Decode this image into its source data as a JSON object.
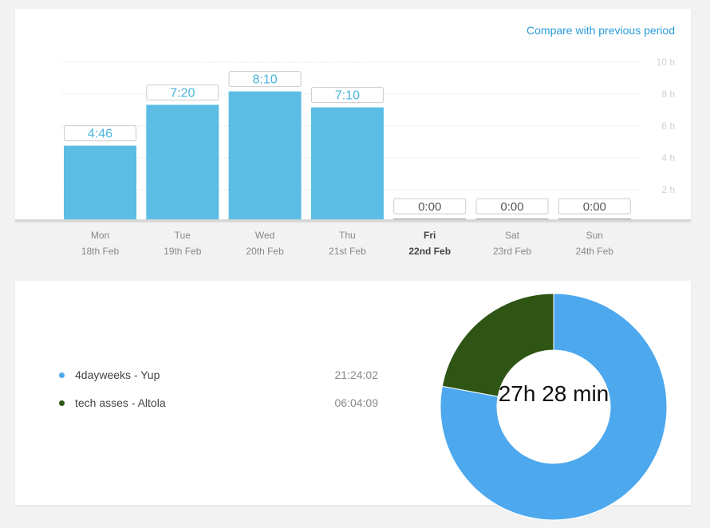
{
  "compare_link": "Compare with previous period",
  "colors": {
    "bar_active": "#5bbde4",
    "bar_empty": "#999999",
    "gridline": "#e6e6e6",
    "label_text": "#4ab3dc",
    "tick_text": "#cfcfcf",
    "day_text": "#888888",
    "day_text_current": "#444444"
  },
  "chart_data": [
    {
      "type": "bar",
      "categories": [
        "Mon",
        "Tue",
        "Wed",
        "Thu",
        "Fri",
        "Sat",
        "Sun"
      ],
      "dates": [
        "18th Feb",
        "19th Feb",
        "20th Feb",
        "21st Feb",
        "22nd Feb",
        "23rd Feb",
        "24th Feb"
      ],
      "current_day": "Fri",
      "values": [
        4.77,
        7.33,
        8.17,
        7.17,
        0,
        0,
        0
      ],
      "data_labels": [
        "4:46",
        "7:20",
        "8:10",
        "7:10",
        "0:00",
        "0:00",
        "0:00"
      ],
      "yticks": [
        {
          "value": 2,
          "label": "2 h"
        },
        {
          "value": 4,
          "label": "4 h"
        },
        {
          "value": 6,
          "label": "6 h"
        },
        {
          "value": 8,
          "label": "8 h"
        },
        {
          "value": 10,
          "label": "10 h"
        }
      ],
      "ylim": [
        0,
        10
      ],
      "grid": true,
      "y_axis_side": "right"
    },
    {
      "type": "pie",
      "style": "donut",
      "center_label": "27h 28 min",
      "slices": [
        {
          "name": "4dayweeks - Yup",
          "value_label": "21:24:02",
          "hours": 21.4,
          "color": "#4da8ee"
        },
        {
          "name": "tech asses - Altola",
          "value_label": "06:04:09",
          "hours": 6.07,
          "color": "#2f5514"
        }
      ]
    }
  ]
}
